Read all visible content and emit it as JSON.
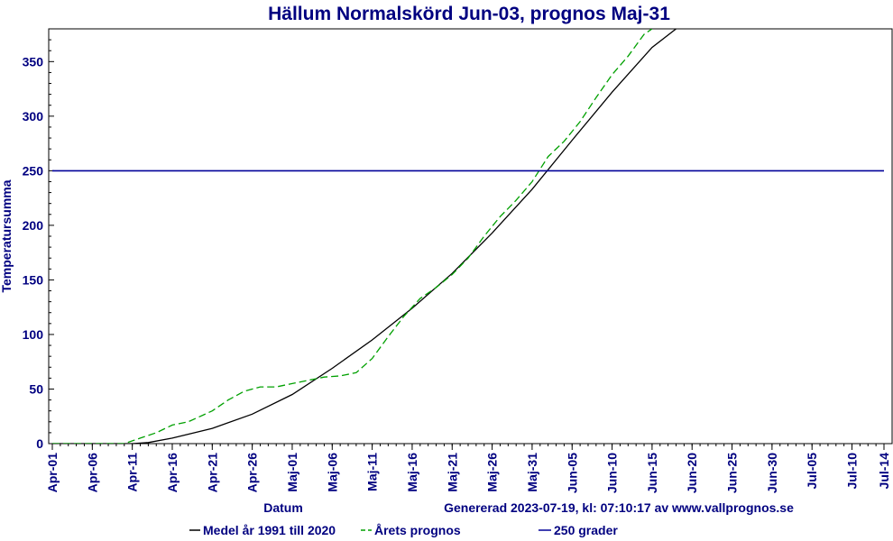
{
  "chart_data": {
    "type": "line",
    "title": "Hällum Normalskörd Jun-03, prognos Maj-31",
    "xlabel": "Datum",
    "ylabel": "Temperatursumma",
    "footer": "Genererad 2023-07-19, kl: 07:10:17 av www.vallprognos.se",
    "xlim": [
      "2023-04-01",
      "2023-07-14"
    ],
    "ylim": [
      0,
      380
    ],
    "x_ticks": [
      "Apr-01",
      "Apr-06",
      "Apr-11",
      "Apr-16",
      "Apr-21",
      "Apr-26",
      "Maj-01",
      "Maj-06",
      "Maj-11",
      "Maj-16",
      "Maj-21",
      "Maj-26",
      "Maj-31",
      "Jun-05",
      "Jun-10",
      "Jun-15",
      "Jun-20",
      "Jun-25",
      "Jun-30",
      "Jul-05",
      "Jul-10",
      "Jul-14"
    ],
    "y_ticks": [
      0,
      50,
      100,
      150,
      200,
      250,
      300,
      350
    ],
    "grid": false,
    "legend_position": "bottom",
    "series": [
      {
        "name": "Medel år 1991 till 2020",
        "color": "#000000",
        "style": "solid",
        "x": [
          "2023-04-01",
          "2023-04-06",
          "2023-04-11",
          "2023-04-13",
          "2023-04-16",
          "2023-04-21",
          "2023-04-26",
          "2023-05-01",
          "2023-05-06",
          "2023-05-11",
          "2023-05-16",
          "2023-05-21",
          "2023-05-26",
          "2023-05-31",
          "2023-06-05",
          "2023-06-10",
          "2023-06-15",
          "2023-06-18"
        ],
        "values": [
          0,
          0,
          0,
          1,
          5,
          14,
          27,
          45,
          69,
          95,
          124,
          156,
          193,
          233,
          278,
          322,
          363,
          380
        ]
      },
      {
        "name": "Årets prognos",
        "color": "#00a000",
        "style": "dashed",
        "x": [
          "2023-04-01",
          "2023-04-06",
          "2023-04-10",
          "2023-04-12",
          "2023-04-14",
          "2023-04-16",
          "2023-04-18",
          "2023-04-21",
          "2023-04-23",
          "2023-04-25",
          "2023-04-27",
          "2023-04-29",
          "2023-05-01",
          "2023-05-03",
          "2023-05-05",
          "2023-05-07",
          "2023-05-09",
          "2023-05-11",
          "2023-05-13",
          "2023-05-15",
          "2023-05-17",
          "2023-05-19",
          "2023-05-21",
          "2023-05-23",
          "2023-05-25",
          "2023-05-27",
          "2023-05-29",
          "2023-05-31",
          "2023-06-02",
          "2023-06-04",
          "2023-06-06",
          "2023-06-08",
          "2023-06-10",
          "2023-06-12",
          "2023-06-14",
          "2023-06-15"
        ],
        "values": [
          0,
          0,
          0,
          5,
          10,
          17,
          20,
          30,
          40,
          48,
          52,
          52,
          55,
          58,
          61,
          62,
          65,
          78,
          98,
          117,
          133,
          143,
          155,
          170,
          190,
          208,
          223,
          240,
          263,
          277,
          295,
          317,
          338,
          355,
          375,
          380
        ]
      },
      {
        "name": "250 grader",
        "color": "#000099",
        "style": "solid",
        "x": [
          "2023-04-01",
          "2023-07-14"
        ],
        "values": [
          250,
          250
        ]
      }
    ]
  }
}
